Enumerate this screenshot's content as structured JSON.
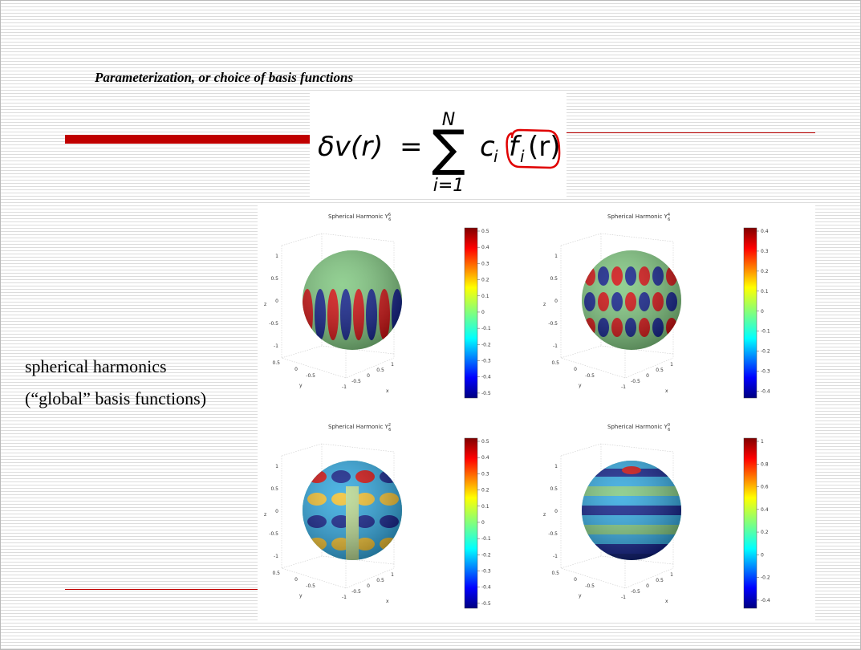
{
  "title": "Parameterization, or choice of basis functions",
  "formula": {
    "lhs": "δv(r)",
    "equals": "=",
    "sum": "∑",
    "upper": "N",
    "lower": "i=1",
    "coefficient": "c",
    "coefficient_index": "i",
    "function": "f",
    "function_index": "i",
    "argument": "(r)"
  },
  "side_text": [
    "spherical harmonics",
    "(“global” basis functions)"
  ],
  "axes": {
    "z_ticks": [
      1,
      0.5,
      0,
      -0.5,
      -1
    ],
    "x_ticks": [
      -1,
      -0.5,
      0,
      0.5,
      1
    ],
    "y_ticks": [
      0.5,
      0,
      -0.5
    ],
    "x_label": "x",
    "y_label": "y",
    "z_label": "z"
  },
  "panels": [
    {
      "title": "Spherical Harmonic Y",
      "degree": "6",
      "order": "6",
      "colorbar_ticks": [
        0.5,
        0.4,
        0.3,
        0.2,
        0.1,
        0,
        -0.1,
        -0.2,
        -0.3,
        -0.4,
        -0.5
      ]
    },
    {
      "title": "Spherical Harmonic Y",
      "degree": "6",
      "order": "4",
      "colorbar_ticks": [
        0.4,
        0.3,
        0.2,
        0.1,
        0,
        -0.1,
        -0.2,
        -0.3,
        -0.4
      ]
    },
    {
      "title": "Spherical Harmonic Y",
      "degree": "6",
      "order": "2",
      "colorbar_ticks": [
        0.5,
        0.4,
        0.3,
        0.2,
        0.1,
        0,
        -0.1,
        -0.2,
        -0.3,
        -0.4,
        -0.5
      ]
    },
    {
      "title": "Spherical Harmonic Y",
      "degree": "6",
      "order": "0",
      "colorbar_ticks": [
        1,
        0.8,
        0.6,
        0.4,
        0.2,
        0,
        -0.2,
        -0.4
      ]
    }
  ]
}
